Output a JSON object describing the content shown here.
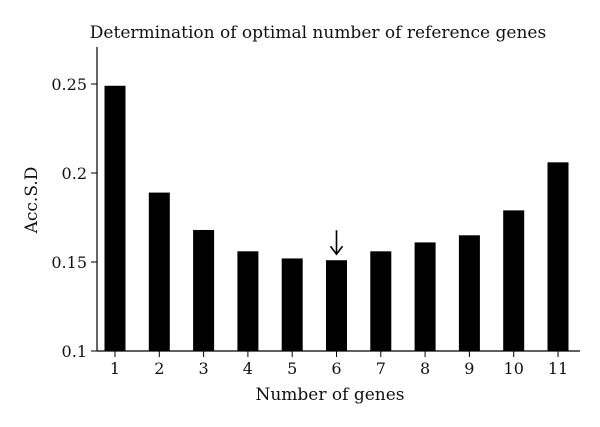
{
  "chart_data": {
    "type": "bar",
    "title": "Determination of optimal number of reference genes",
    "xlabel": "Number of genes",
    "ylabel": "Acc.S.D",
    "categories": [
      "1",
      "2",
      "3",
      "4",
      "5",
      "6",
      "7",
      "8",
      "9",
      "10",
      "11"
    ],
    "values": [
      0.249,
      0.189,
      0.168,
      0.156,
      0.152,
      0.151,
      0.156,
      0.161,
      0.165,
      0.179,
      0.206
    ],
    "ylim": [
      0.1,
      0.27
    ],
    "yticks": [
      0.1,
      0.15,
      0.2,
      0.25
    ],
    "ytick_labels": [
      "0.1",
      "0.15",
      "0.2",
      "0.25"
    ],
    "grid": false,
    "legend": "none",
    "annotations": [
      {
        "type": "down-arrow",
        "category": "6"
      }
    ],
    "colors": {
      "bar": "#000000",
      "axis": "#000000",
      "background": "#ffffff"
    }
  }
}
